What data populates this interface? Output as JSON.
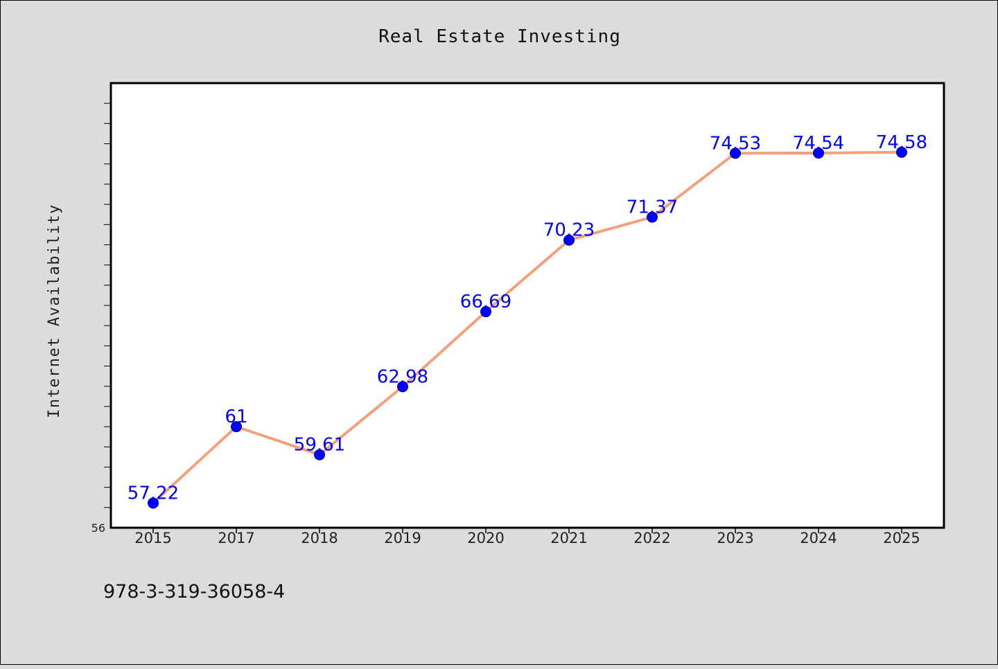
{
  "chart_data": {
    "type": "line",
    "title": "Real Estate Investing",
    "xlabel": "",
    "ylabel": "Internet Availability",
    "categories": [
      "2015",
      "2017",
      "2018",
      "2019",
      "2020",
      "2021",
      "2022",
      "2023",
      "2024",
      "2025"
    ],
    "series": [
      {
        "values": [
          57.22,
          61,
          59.61,
          62.98,
          66.69,
          70.23,
          71.37,
          74.53,
          74.54,
          74.58
        ],
        "labels": [
          "57.22",
          "61",
          "59.61",
          "62.98",
          "66.69",
          "70.23",
          "71.37",
          "74.53",
          "74.54",
          "74.58"
        ]
      }
    ],
    "ylim": [
      56,
      78
    ],
    "yticks": [
      "56"
    ],
    "grid": false,
    "legend": "none",
    "colors": {
      "line": "#f4a07c",
      "marker": "#0000ff",
      "data_label": "#0000ff",
      "background": "#dcdcdc",
      "plot_background": "#ffffff"
    }
  },
  "footnote": "978-3-319-36058-4"
}
